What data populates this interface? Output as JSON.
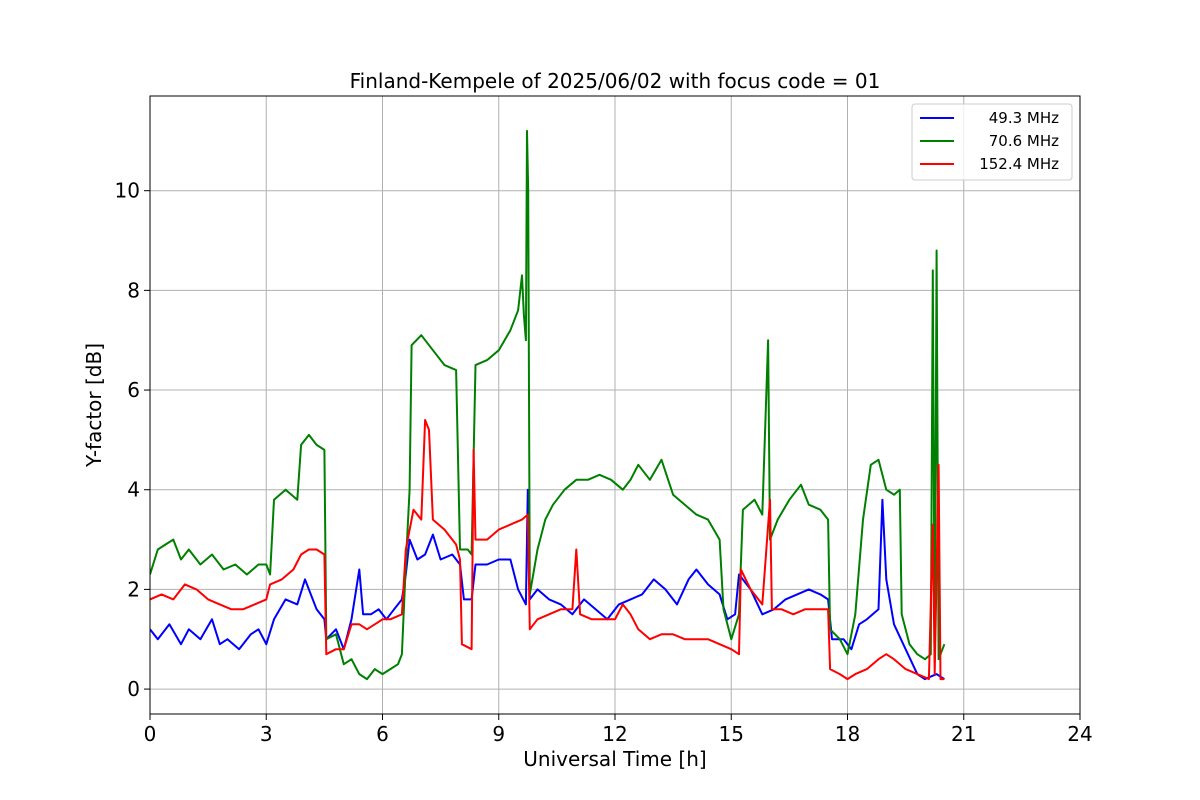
{
  "chart_data": {
    "type": "line",
    "title": "Finland-Kempele of 2025/06/02 with focus code = 01",
    "xlabel": "Universal Time [h]",
    "ylabel": "Y-factor [dB]",
    "xlim": [
      0,
      24
    ],
    "ylim": [
      -0.5,
      11.9
    ],
    "xticks": [
      "0",
      "3",
      "6",
      "9",
      "12",
      "15",
      "18",
      "21",
      "24"
    ],
    "yticks": [
      "0",
      "2",
      "4",
      "6",
      "8",
      "10"
    ],
    "grid": true,
    "legend_position": "upper right",
    "colors": {
      "49.3 MHz": "#0000ff",
      "70.6 MHz": "#008000",
      "152.4 MHz": "#ff0000"
    },
    "series": [
      {
        "name": "49.3 MHz",
        "color": "#0000ff",
        "points": [
          [
            0.0,
            1.2
          ],
          [
            0.2,
            1.0
          ],
          [
            0.5,
            1.3
          ],
          [
            0.8,
            0.9
          ],
          [
            1.0,
            1.2
          ],
          [
            1.3,
            1.0
          ],
          [
            1.6,
            1.4
          ],
          [
            1.8,
            0.9
          ],
          [
            2.0,
            1.0
          ],
          [
            2.3,
            0.8
          ],
          [
            2.6,
            1.1
          ],
          [
            2.8,
            1.2
          ],
          [
            3.0,
            0.9
          ],
          [
            3.2,
            1.4
          ],
          [
            3.5,
            1.8
          ],
          [
            3.8,
            1.7
          ],
          [
            4.0,
            2.2
          ],
          [
            4.3,
            1.6
          ],
          [
            4.5,
            1.4
          ],
          [
            4.55,
            1.0
          ],
          [
            4.8,
            1.2
          ],
          [
            5.0,
            0.8
          ],
          [
            5.2,
            1.4
          ],
          [
            5.4,
            2.4
          ],
          [
            5.5,
            1.5
          ],
          [
            5.7,
            1.5
          ],
          [
            5.9,
            1.6
          ],
          [
            6.1,
            1.4
          ],
          [
            6.3,
            1.6
          ],
          [
            6.5,
            1.8
          ],
          [
            6.6,
            2.3
          ],
          [
            6.7,
            3.0
          ],
          [
            6.9,
            2.6
          ],
          [
            7.1,
            2.7
          ],
          [
            7.3,
            3.1
          ],
          [
            7.5,
            2.6
          ],
          [
            7.8,
            2.7
          ],
          [
            8.0,
            2.5
          ],
          [
            8.1,
            1.8
          ],
          [
            8.3,
            1.8
          ],
          [
            8.4,
            2.5
          ],
          [
            8.7,
            2.5
          ],
          [
            9.0,
            2.6
          ],
          [
            9.3,
            2.6
          ],
          [
            9.5,
            2.0
          ],
          [
            9.7,
            1.7
          ],
          [
            9.75,
            4.0
          ],
          [
            9.8,
            1.8
          ],
          [
            10.0,
            2.0
          ],
          [
            10.3,
            1.8
          ],
          [
            10.6,
            1.7
          ],
          [
            10.9,
            1.5
          ],
          [
            11.2,
            1.8
          ],
          [
            11.5,
            1.6
          ],
          [
            11.8,
            1.4
          ],
          [
            12.1,
            1.7
          ],
          [
            12.4,
            1.8
          ],
          [
            12.7,
            1.9
          ],
          [
            13.0,
            2.2
          ],
          [
            13.3,
            2.0
          ],
          [
            13.6,
            1.7
          ],
          [
            13.9,
            2.2
          ],
          [
            14.1,
            2.4
          ],
          [
            14.4,
            2.1
          ],
          [
            14.7,
            1.9
          ],
          [
            14.9,
            1.4
          ],
          [
            15.1,
            1.5
          ],
          [
            15.2,
            2.3
          ],
          [
            15.5,
            2.0
          ],
          [
            15.8,
            1.5
          ],
          [
            16.1,
            1.6
          ],
          [
            16.4,
            1.8
          ],
          [
            16.7,
            1.9
          ],
          [
            17.0,
            2.0
          ],
          [
            17.3,
            1.9
          ],
          [
            17.5,
            1.8
          ],
          [
            17.6,
            1.0
          ],
          [
            17.9,
            1.0
          ],
          [
            18.1,
            0.8
          ],
          [
            18.3,
            1.3
          ],
          [
            18.5,
            1.4
          ],
          [
            18.8,
            1.6
          ],
          [
            18.9,
            3.8
          ],
          [
            19.0,
            2.2
          ],
          [
            19.2,
            1.3
          ],
          [
            19.5,
            0.8
          ],
          [
            19.8,
            0.3
          ],
          [
            20.0,
            0.2
          ],
          [
            20.3,
            0.3
          ],
          [
            20.5,
            0.2
          ]
        ]
      },
      {
        "name": "70.6 MHz",
        "color": "#008000",
        "points": [
          [
            0.0,
            2.3
          ],
          [
            0.2,
            2.8
          ],
          [
            0.4,
            2.9
          ],
          [
            0.6,
            3.0
          ],
          [
            0.8,
            2.6
          ],
          [
            1.0,
            2.8
          ],
          [
            1.3,
            2.5
          ],
          [
            1.6,
            2.7
          ],
          [
            1.9,
            2.4
          ],
          [
            2.2,
            2.5
          ],
          [
            2.5,
            2.3
          ],
          [
            2.8,
            2.5
          ],
          [
            3.0,
            2.5
          ],
          [
            3.1,
            2.3
          ],
          [
            3.2,
            3.8
          ],
          [
            3.5,
            4.0
          ],
          [
            3.8,
            3.8
          ],
          [
            3.9,
            4.9
          ],
          [
            4.1,
            5.1
          ],
          [
            4.3,
            4.9
          ],
          [
            4.5,
            4.8
          ],
          [
            4.55,
            1.0
          ],
          [
            4.8,
            1.1
          ],
          [
            5.0,
            0.5
          ],
          [
            5.2,
            0.6
          ],
          [
            5.4,
            0.3
          ],
          [
            5.6,
            0.2
          ],
          [
            5.8,
            0.4
          ],
          [
            6.0,
            0.3
          ],
          [
            6.2,
            0.4
          ],
          [
            6.4,
            0.5
          ],
          [
            6.5,
            0.7
          ],
          [
            6.6,
            2.5
          ],
          [
            6.7,
            4.0
          ],
          [
            6.75,
            6.9
          ],
          [
            7.0,
            7.1
          ],
          [
            7.3,
            6.8
          ],
          [
            7.6,
            6.5
          ],
          [
            7.9,
            6.4
          ],
          [
            8.0,
            2.8
          ],
          [
            8.2,
            2.8
          ],
          [
            8.3,
            2.7
          ],
          [
            8.4,
            6.5
          ],
          [
            8.7,
            6.6
          ],
          [
            9.0,
            6.8
          ],
          [
            9.3,
            7.2
          ],
          [
            9.5,
            7.6
          ],
          [
            9.6,
            8.3
          ],
          [
            9.65,
            7.5
          ],
          [
            9.7,
            7.0
          ],
          [
            9.73,
            11.2
          ],
          [
            9.76,
            10.0
          ],
          [
            9.8,
            1.9
          ],
          [
            10.0,
            2.8
          ],
          [
            10.2,
            3.4
          ],
          [
            10.4,
            3.7
          ],
          [
            10.7,
            4.0
          ],
          [
            11.0,
            4.2
          ],
          [
            11.3,
            4.2
          ],
          [
            11.6,
            4.3
          ],
          [
            11.9,
            4.2
          ],
          [
            12.2,
            4.0
          ],
          [
            12.4,
            4.2
          ],
          [
            12.6,
            4.5
          ],
          [
            12.9,
            4.2
          ],
          [
            13.2,
            4.6
          ],
          [
            13.5,
            3.9
          ],
          [
            13.8,
            3.7
          ],
          [
            14.1,
            3.5
          ],
          [
            14.4,
            3.4
          ],
          [
            14.7,
            3.0
          ],
          [
            14.8,
            1.6
          ],
          [
            15.0,
            1.0
          ],
          [
            15.2,
            1.5
          ],
          [
            15.3,
            3.6
          ],
          [
            15.6,
            3.8
          ],
          [
            15.8,
            3.5
          ],
          [
            15.95,
            7.0
          ],
          [
            16.0,
            3.0
          ],
          [
            16.2,
            3.4
          ],
          [
            16.5,
            3.8
          ],
          [
            16.8,
            4.1
          ],
          [
            17.0,
            3.7
          ],
          [
            17.3,
            3.6
          ],
          [
            17.5,
            3.4
          ],
          [
            17.55,
            1.2
          ],
          [
            17.8,
            1.0
          ],
          [
            18.0,
            0.7
          ],
          [
            18.2,
            1.5
          ],
          [
            18.4,
            3.4
          ],
          [
            18.6,
            4.5
          ],
          [
            18.8,
            4.6
          ],
          [
            19.0,
            4.0
          ],
          [
            19.2,
            3.9
          ],
          [
            19.35,
            4.0
          ],
          [
            19.4,
            1.5
          ],
          [
            19.6,
            0.9
          ],
          [
            19.8,
            0.7
          ],
          [
            20.0,
            0.6
          ],
          [
            20.15,
            0.7
          ],
          [
            20.2,
            8.4
          ],
          [
            20.25,
            0.6
          ],
          [
            20.3,
            8.8
          ],
          [
            20.35,
            0.6
          ],
          [
            20.5,
            0.9
          ]
        ]
      },
      {
        "name": "152.4 MHz",
        "color": "#ff0000",
        "points": [
          [
            0.0,
            1.8
          ],
          [
            0.3,
            1.9
          ],
          [
            0.6,
            1.8
          ],
          [
            0.9,
            2.1
          ],
          [
            1.2,
            2.0
          ],
          [
            1.5,
            1.8
          ],
          [
            1.8,
            1.7
          ],
          [
            2.1,
            1.6
          ],
          [
            2.4,
            1.6
          ],
          [
            2.7,
            1.7
          ],
          [
            3.0,
            1.8
          ],
          [
            3.1,
            2.1
          ],
          [
            3.4,
            2.2
          ],
          [
            3.7,
            2.4
          ],
          [
            3.9,
            2.7
          ],
          [
            4.1,
            2.8
          ],
          [
            4.3,
            2.8
          ],
          [
            4.5,
            2.7
          ],
          [
            4.55,
            0.7
          ],
          [
            4.8,
            0.8
          ],
          [
            5.0,
            0.8
          ],
          [
            5.2,
            1.3
          ],
          [
            5.4,
            1.3
          ],
          [
            5.6,
            1.2
          ],
          [
            5.8,
            1.3
          ],
          [
            6.0,
            1.4
          ],
          [
            6.2,
            1.4
          ],
          [
            6.5,
            1.5
          ],
          [
            6.6,
            2.8
          ],
          [
            6.8,
            3.6
          ],
          [
            7.0,
            3.4
          ],
          [
            7.1,
            5.4
          ],
          [
            7.2,
            5.2
          ],
          [
            7.3,
            3.4
          ],
          [
            7.6,
            3.2
          ],
          [
            7.9,
            2.9
          ],
          [
            8.0,
            2.6
          ],
          [
            8.05,
            0.9
          ],
          [
            8.3,
            0.8
          ],
          [
            8.35,
            4.8
          ],
          [
            8.4,
            3.0
          ],
          [
            8.7,
            3.0
          ],
          [
            9.0,
            3.2
          ],
          [
            9.3,
            3.3
          ],
          [
            9.6,
            3.4
          ],
          [
            9.75,
            3.5
          ],
          [
            9.8,
            1.2
          ],
          [
            10.0,
            1.4
          ],
          [
            10.3,
            1.5
          ],
          [
            10.6,
            1.6
          ],
          [
            10.9,
            1.6
          ],
          [
            11.0,
            2.8
          ],
          [
            11.1,
            1.5
          ],
          [
            11.4,
            1.4
          ],
          [
            11.7,
            1.4
          ],
          [
            12.0,
            1.4
          ],
          [
            12.2,
            1.7
          ],
          [
            12.4,
            1.5
          ],
          [
            12.6,
            1.2
          ],
          [
            12.9,
            1.0
          ],
          [
            13.2,
            1.1
          ],
          [
            13.5,
            1.1
          ],
          [
            13.8,
            1.0
          ],
          [
            14.1,
            1.0
          ],
          [
            14.4,
            1.0
          ],
          [
            14.7,
            0.9
          ],
          [
            15.0,
            0.8
          ],
          [
            15.2,
            0.7
          ],
          [
            15.25,
            2.4
          ],
          [
            15.5,
            2.0
          ],
          [
            15.8,
            1.7
          ],
          [
            16.0,
            3.8
          ],
          [
            16.05,
            1.6
          ],
          [
            16.3,
            1.6
          ],
          [
            16.6,
            1.5
          ],
          [
            16.9,
            1.6
          ],
          [
            17.2,
            1.6
          ],
          [
            17.5,
            1.6
          ],
          [
            17.55,
            0.4
          ],
          [
            17.8,
            0.3
          ],
          [
            18.0,
            0.2
          ],
          [
            18.2,
            0.3
          ],
          [
            18.5,
            0.4
          ],
          [
            18.8,
            0.6
          ],
          [
            19.0,
            0.7
          ],
          [
            19.2,
            0.6
          ],
          [
            19.5,
            0.4
          ],
          [
            19.8,
            0.3
          ],
          [
            20.1,
            0.2
          ],
          [
            20.2,
            3.3
          ],
          [
            20.25,
            0.3
          ],
          [
            20.35,
            4.5
          ],
          [
            20.4,
            0.2
          ],
          [
            20.5,
            0.2
          ]
        ]
      }
    ]
  }
}
